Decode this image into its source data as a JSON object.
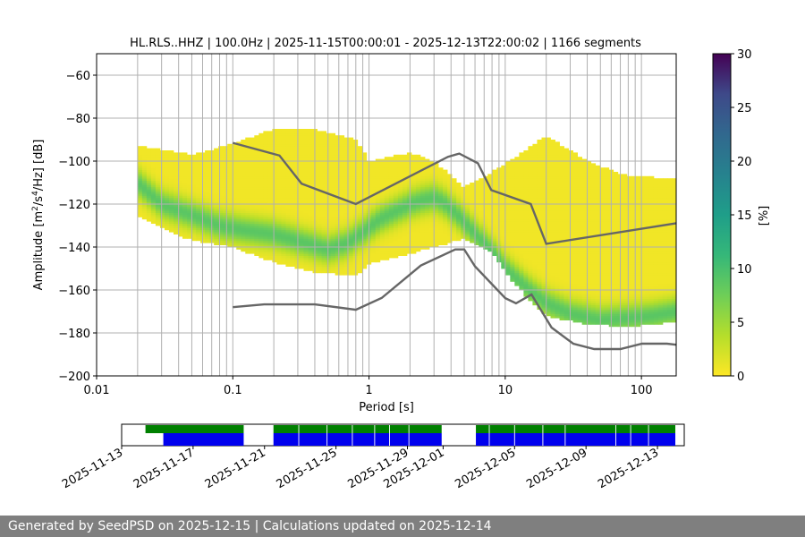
{
  "chart_data": [
    {
      "type": "heatmap",
      "title": "HL.RLS..HHZ | 100.0Hz | 2025-11-15T00:00:01 - 2025-12-13T22:00:02 | 1166 segments",
      "xlabel": "Period [s]",
      "ylabel_main": "Amplitude [m",
      "ylabel_sup1": "2",
      "ylabel_mid": "/s",
      "ylabel_sup2": "4",
      "ylabel_end": "/Hz] [dB]",
      "xscale": "log",
      "xlim": [
        0.01,
        180
      ],
      "ylim": [
        -200,
        -50
      ],
      "x_ticks": [
        0.01,
        0.1,
        1,
        10,
        100
      ],
      "x_tick_labels": [
        "0.01",
        "0.1",
        "1",
        "10",
        "100"
      ],
      "y_ticks": [
        -200,
        -180,
        -160,
        -140,
        -120,
        -100,
        -80,
        -60
      ],
      "y_tick_labels": [
        "−200",
        "−180",
        "−160",
        "−140",
        "−120",
        "−100",
        "−80",
        "−60"
      ],
      "grid_periods": [
        0.02,
        0.03,
        0.04,
        0.05,
        0.06,
        0.07,
        0.08,
        0.09,
        0.1,
        0.2,
        0.3,
        0.4,
        0.5,
        0.6,
        0.7,
        0.8,
        0.9,
        1,
        2,
        3,
        4,
        5,
        6,
        7,
        8,
        9,
        10,
        20,
        30,
        40,
        50,
        60,
        70,
        80,
        90,
        100
      ],
      "grid_db": [
        -200,
        -180,
        -160,
        -140,
        -120,
        -100,
        -80,
        -60
      ],
      "colorbar": {
        "label": "[%]",
        "min": 0,
        "max": 30,
        "ticks": [
          0,
          5,
          10,
          15,
          20,
          25,
          30
        ],
        "tick_labels": [
          "0",
          "5",
          "10",
          "15",
          "20",
          "25",
          "30"
        ],
        "colormap": "viridis_r"
      },
      "mode_curve": {
        "period": [
          0.02,
          0.03,
          0.05,
          0.08,
          0.12,
          0.2,
          0.3,
          0.5,
          0.7,
          0.9,
          1.2,
          1.6,
          2.0,
          2.5,
          3.0,
          3.5,
          4.0,
          5.0,
          6.0,
          8.0,
          10.0,
          15.0,
          20.0,
          30.0,
          50.0,
          80.0,
          120.0,
          180.0
        ],
        "db": [
          -110,
          -120,
          -125,
          -130,
          -132,
          -134,
          -137,
          -141,
          -138,
          -133,
          -127,
          -123,
          -120,
          -118,
          -117,
          -119,
          -122,
          -128,
          -134,
          -142,
          -150,
          -160,
          -166,
          -171,
          -174,
          -173,
          -172,
          -170
        ]
      },
      "occurrence_envelope": {
        "period": [
          0.02,
          0.05,
          0.1,
          0.2,
          0.4,
          0.8,
          1.0,
          2.0,
          3.0,
          5.0,
          8.0,
          12.0,
          20.0,
          40.0,
          80.0,
          180.0
        ],
        "upper_db": [
          -93,
          -97,
          -92,
          -85,
          -85,
          -90,
          -100,
          -96,
          -100,
          -112,
          -105,
          -98,
          -88,
          -100,
          -107,
          -108
        ],
        "lower_db": [
          -126,
          -137,
          -140,
          -147,
          -152,
          -153,
          -148,
          -143,
          -140,
          -136,
          -142,
          -158,
          -172,
          -176,
          -177,
          -175
        ]
      },
      "nhnm": {
        "period": [
          0.1,
          0.22,
          0.32,
          0.8,
          3.8,
          4.6,
          6.3,
          7.9,
          15.4,
          20.0,
          354.8
        ],
        "db": [
          -91.5,
          -97.4,
          -110.5,
          -120.0,
          -98.0,
          -96.5,
          -101.0,
          -113.5,
          -120.0,
          -138.5,
          -126.0
        ]
      },
      "nlnm": {
        "period": [
          0.1,
          0.17,
          0.4,
          0.8,
          1.24,
          2.4,
          4.3,
          5.0,
          6.0,
          10.0,
          12.0,
          15.6,
          21.9,
          31.6,
          45.0,
          70.0,
          101.0,
          154.0,
          328.0
        ],
        "db": [
          -168.0,
          -166.7,
          -166.7,
          -169.2,
          -163.7,
          -148.6,
          -141.1,
          -141.1,
          -149.0,
          -163.8,
          -166.2,
          -162.1,
          -177.5,
          -185.0,
          -187.5,
          -187.5,
          -185.0,
          -185.0,
          -187.5
        ]
      }
    },
    {
      "type": "timeline",
      "x_tick_labels": [
        "2025-11-13",
        "2025-11-17",
        "2025-11-21",
        "2025-11-25",
        "2025-11-29",
        "2025-12-01",
        "2025-12-05",
        "2025-12-09",
        "2025-12-13"
      ],
      "x_tick_dates": [
        "2025-11-13",
        "2025-11-17",
        "2025-11-21",
        "2025-11-25",
        "2025-11-29",
        "2025-12-01",
        "2025-12-05",
        "2025-12-09",
        "2025-12-13"
      ],
      "xlim": [
        "2025-11-13T00:00",
        "2025-12-14T12:00"
      ],
      "data_segments": {
        "color": "#008000",
        "intervals": [
          [
            "2025-11-14T08:00",
            "2025-11-19T20:00"
          ],
          [
            "2025-11-21T12:00",
            "2025-11-30T22:00"
          ],
          [
            "2025-12-02T20:00",
            "2025-12-14T00:00"
          ]
        ]
      },
      "psd_segments": {
        "color": "#0000ee",
        "intervals": [
          [
            "2025-11-15T08:00",
            "2025-11-19T20:00"
          ],
          [
            "2025-11-21T12:00",
            "2025-11-30T22:00"
          ],
          [
            "2025-12-02T20:00",
            "2025-12-14T00:00"
          ]
        ]
      },
      "gap_dates": [
        "2025-11-22T22:00",
        "2025-11-24T12:00",
        "2025-11-25T22:00",
        "2025-11-27T04:00",
        "2025-11-28T00:00",
        "2025-11-29T02:00",
        "2025-12-03T14:00",
        "2025-12-05T00:00",
        "2025-12-06T14:00",
        "2025-12-07T20:00",
        "2025-12-10T16:00",
        "2025-12-11T12:00",
        "2025-12-12T12:00"
      ]
    }
  ],
  "footer": {
    "text": "Generated by SeedPSD on 2025-12-15 | Calculations updated on 2025-12-14"
  }
}
